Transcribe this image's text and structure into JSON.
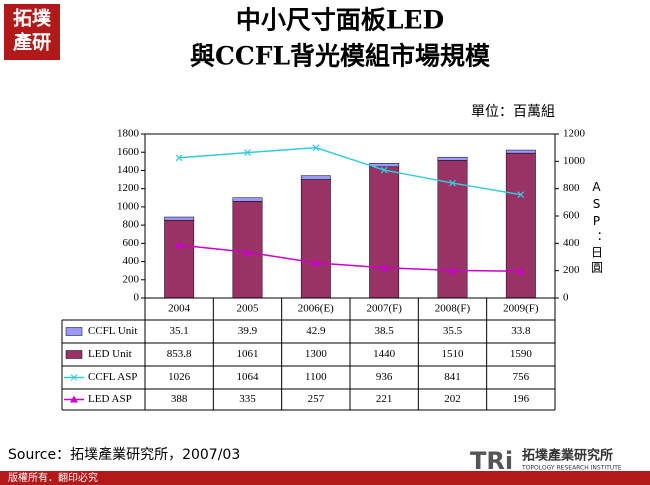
{
  "chart_data": {
    "type": "bar_line_table",
    "title": [
      "中小尺寸面板LED",
      "與CCFL背光模組市場規模"
    ],
    "unit_label": "單位：百萬組",
    "y2label": "ASP：日圓",
    "categories": [
      "2004",
      "2005",
      "2006(E)",
      "2007(F)",
      "2008(F)",
      "2009(F)"
    ],
    "series": [
      {
        "name": "CCFL Unit",
        "color": "#9999ff",
        "stack": "unit",
        "kind": "bar",
        "values": [
          35.1,
          39.9,
          42.9,
          38.5,
          35.5,
          33.8
        ]
      },
      {
        "name": "LED Unit",
        "color": "#993366",
        "stack": "unit",
        "kind": "bar",
        "values": [
          853.8,
          1061,
          1300,
          1440,
          1510,
          1590
        ]
      },
      {
        "name": "CCFL ASP",
        "color": "#33ccdd",
        "kind": "line",
        "marker": "x",
        "axis": "y2",
        "values": [
          1026,
          1064,
          1100,
          936,
          841,
          756
        ]
      },
      {
        "name": "LED ASP",
        "color": "#cc00cc",
        "kind": "line",
        "marker": "triangle",
        "axis": "y2",
        "values": [
          388,
          335,
          257,
          221,
          202,
          196
        ]
      }
    ],
    "ylim": [
      0,
      1800
    ],
    "yticks": [
      0,
      200,
      400,
      600,
      800,
      1000,
      1200,
      1400,
      1600,
      1800
    ],
    "y2lim": [
      0,
      1200
    ],
    "y2ticks": [
      0,
      200,
      400,
      600,
      800,
      1000,
      1200
    ],
    "source": "Source：拓墣產業研究所，2007/03"
  },
  "logo_top": [
    "拓墣",
    "產研"
  ],
  "footer": {
    "copyright": "版權所有．翻印必究",
    "brand": "TRi",
    "brand_cn": "拓墣產業研究所",
    "brand_en": "TOPOLOGY RESEARCH INSTITUTE"
  }
}
